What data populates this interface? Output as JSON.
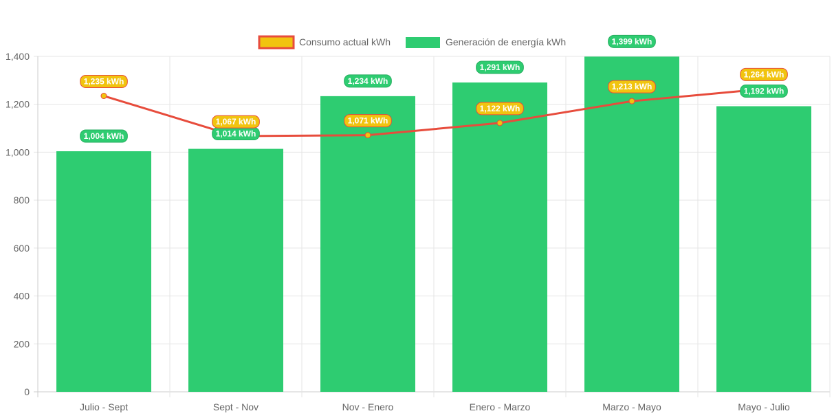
{
  "chart_data": {
    "type": "bar",
    "categories": [
      "Julio - Sept",
      "Sept - Nov",
      "Nov - Enero",
      "Enero - Marzo",
      "Marzo - Mayo",
      "Mayo - Julio"
    ],
    "series": [
      {
        "name": "Consumo actual kWh",
        "type": "line",
        "values": [
          1235,
          1067,
          1071,
          1122,
          1213,
          1264
        ],
        "labels": [
          "1,235 kWh",
          "1,067 kWh",
          "1,071 kWh",
          "1,122 kWh",
          "1,213 kWh",
          "1,264 kWh"
        ],
        "line_color": "#e74c3c",
        "fill_color": "#f1c40f"
      },
      {
        "name": "Generación de energía kWh",
        "type": "bar",
        "values": [
          1004,
          1014,
          1234,
          1291,
          1399,
          1192
        ],
        "labels": [
          "1,004 kWh",
          "1,014 kWh",
          "1,234 kWh",
          "1,291 kWh",
          "1,399 kWh",
          "1,192 kWh"
        ],
        "color": "#2ecc71"
      }
    ],
    "ylim": [
      0,
      1400
    ],
    "yticks": [
      0,
      200,
      400,
      600,
      800,
      1000,
      1200,
      1400
    ],
    "ytick_labels": [
      "0",
      "200",
      "400",
      "600",
      "800",
      "1,000",
      "1,200",
      "1,400"
    ],
    "grid": true,
    "legend": "top-center",
    "title": "",
    "xlabel": "",
    "ylabel": ""
  }
}
